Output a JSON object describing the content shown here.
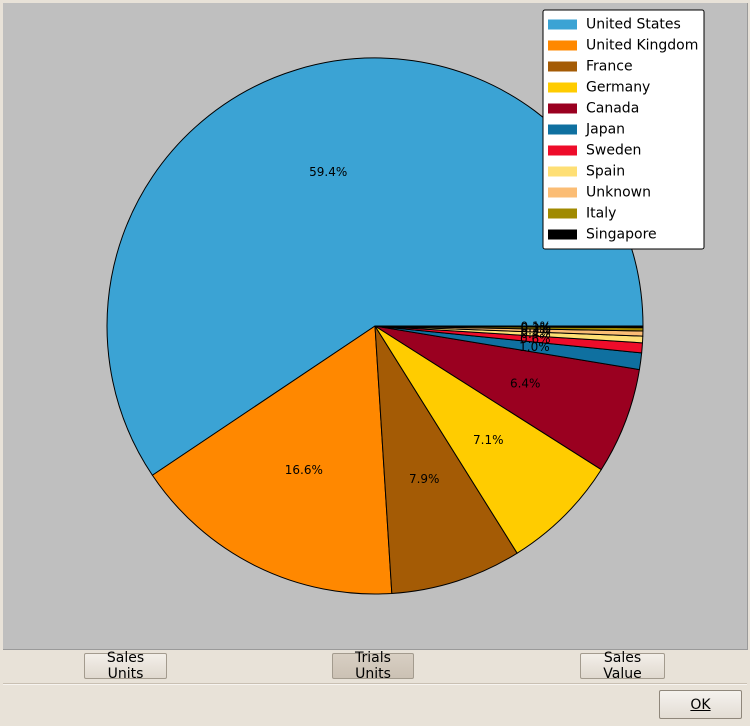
{
  "chart_data": {
    "type": "pie",
    "categories": [
      "United States",
      "United Kingdom",
      "France",
      "Germany",
      "Canada",
      "Japan",
      "Sweden",
      "Spain",
      "Unknown",
      "Italy",
      "Singapore"
    ],
    "values": [
      59.4,
      16.6,
      7.9,
      7.1,
      6.4,
      1.0,
      0.6,
      0.4,
      0.3,
      0.2,
      0.1
    ],
    "labels": [
      "59.4%",
      "16.6%",
      "7.9%",
      "7.1%",
      "6.4%",
      "1.0%",
      "0.6%",
      "0.4%",
      "0.3%",
      "0.2%",
      "0.1%"
    ],
    "colors": [
      "#3ba3d4",
      "#ff8800",
      "#a45b05",
      "#ffcc00",
      "#9a0020",
      "#0f70a0",
      "#ee0c2a",
      "#fedf75",
      "#fbbd75",
      "#a08a00",
      "#000000"
    ],
    "legend_position": "top-right",
    "start_angle": "east, counter-clockwise"
  },
  "buttons": {
    "sales_units": "Sales Units",
    "trials_units": "Trials Units",
    "sales_value": "Sales Value",
    "ok": "OK"
  }
}
